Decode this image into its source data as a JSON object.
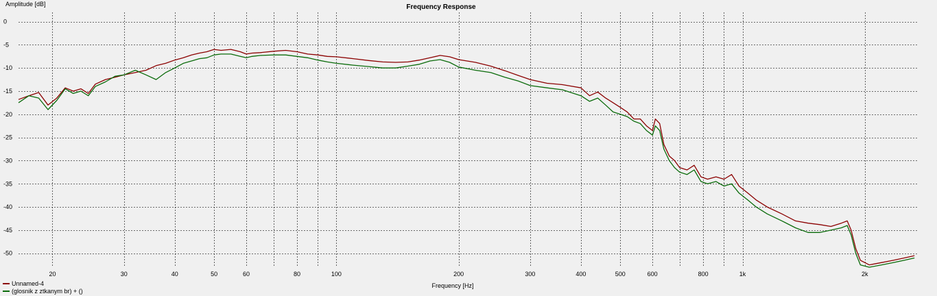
{
  "chart_data": {
    "type": "line",
    "title": "Frequency Response",
    "xlabel": "Frequency [Hz]",
    "ylabel": "Amplitude [dB]",
    "x_scale": "log",
    "xlim": [
      16.5,
      2700
    ],
    "ylim": [
      -53,
      2
    ],
    "grid": true,
    "legend_position": "bottom-left",
    "x_ticks": [
      {
        "value": 20,
        "label": "20"
      },
      {
        "value": 30,
        "label": "30"
      },
      {
        "value": 40,
        "label": "40"
      },
      {
        "value": 50,
        "label": "50"
      },
      {
        "value": 60,
        "label": "60"
      },
      {
        "value": 80,
        "label": "80"
      },
      {
        "value": 100,
        "label": "100"
      },
      {
        "value": 200,
        "label": "200"
      },
      {
        "value": 300,
        "label": "300"
      },
      {
        "value": 400,
        "label": "400"
      },
      {
        "value": 500,
        "label": "500"
      },
      {
        "value": 600,
        "label": "600"
      },
      {
        "value": 800,
        "label": "800"
      },
      {
        "value": 1000,
        "label": "1k"
      },
      {
        "value": 2000,
        "label": "2k"
      }
    ],
    "x_minor_grid": [
      70,
      90,
      700,
      900
    ],
    "y_ticks": [
      {
        "value": 0,
        "label": "0"
      },
      {
        "value": -5,
        "label": "-5"
      },
      {
        "value": -10,
        "label": "-10"
      },
      {
        "value": -15,
        "label": "-15"
      },
      {
        "value": -20,
        "label": "-20"
      },
      {
        "value": -25,
        "label": "-25"
      },
      {
        "value": -30,
        "label": "-30"
      },
      {
        "value": -35,
        "label": "-35"
      },
      {
        "value": -40,
        "label": "-40"
      },
      {
        "value": -45,
        "label": "-45"
      },
      {
        "value": -50,
        "label": "-50"
      }
    ],
    "series": [
      {
        "name": "Unnamed-4",
        "color": "#8b0000",
        "points": [
          [
            16.5,
            -16.8
          ],
          [
            17.5,
            -16.0
          ],
          [
            18.5,
            -15.3
          ],
          [
            19.5,
            -18.0
          ],
          [
            20.5,
            -16.5
          ],
          [
            21.5,
            -14.3
          ],
          [
            22.5,
            -15.0
          ],
          [
            23.5,
            -14.5
          ],
          [
            24.5,
            -15.5
          ],
          [
            25.5,
            -13.5
          ],
          [
            27,
            -12.5
          ],
          [
            28.5,
            -12.0
          ],
          [
            30,
            -11.5
          ],
          [
            32,
            -11.0
          ],
          [
            34,
            -10.5
          ],
          [
            36,
            -9.5
          ],
          [
            38,
            -9.0
          ],
          [
            40,
            -8.3
          ],
          [
            42,
            -7.8
          ],
          [
            44,
            -7.2
          ],
          [
            46,
            -6.8
          ],
          [
            48,
            -6.5
          ],
          [
            50,
            -6.0
          ],
          [
            52,
            -6.2
          ],
          [
            55,
            -6.0
          ],
          [
            58,
            -6.5
          ],
          [
            60,
            -7.0
          ],
          [
            62,
            -6.8
          ],
          [
            65,
            -6.7
          ],
          [
            70,
            -6.4
          ],
          [
            75,
            -6.2
          ],
          [
            80,
            -6.5
          ],
          [
            85,
            -7.0
          ],
          [
            90,
            -7.2
          ],
          [
            95,
            -7.5
          ],
          [
            100,
            -7.6
          ],
          [
            110,
            -8.0
          ],
          [
            120,
            -8.4
          ],
          [
            130,
            -8.7
          ],
          [
            140,
            -8.8
          ],
          [
            150,
            -8.7
          ],
          [
            160,
            -8.3
          ],
          [
            170,
            -7.8
          ],
          [
            180,
            -7.3
          ],
          [
            190,
            -7.6
          ],
          [
            200,
            -8.2
          ],
          [
            220,
            -8.8
          ],
          [
            240,
            -9.6
          ],
          [
            260,
            -10.6
          ],
          [
            280,
            -11.6
          ],
          [
            300,
            -12.5
          ],
          [
            330,
            -13.3
          ],
          [
            360,
            -13.6
          ],
          [
            400,
            -14.3
          ],
          [
            420,
            -16.0
          ],
          [
            440,
            -15.2
          ],
          [
            460,
            -16.5
          ],
          [
            480,
            -17.5
          ],
          [
            500,
            -18.5
          ],
          [
            520,
            -19.5
          ],
          [
            540,
            -21.0
          ],
          [
            560,
            -21.0
          ],
          [
            580,
            -22.5
          ],
          [
            600,
            -23.5
          ],
          [
            610,
            -21.0
          ],
          [
            625,
            -22.0
          ],
          [
            640,
            -26.5
          ],
          [
            660,
            -29.0
          ],
          [
            680,
            -30.0
          ],
          [
            700,
            -31.5
          ],
          [
            730,
            -32.0
          ],
          [
            760,
            -31.0
          ],
          [
            790,
            -33.5
          ],
          [
            820,
            -34.0
          ],
          [
            860,
            -33.5
          ],
          [
            900,
            -34.0
          ],
          [
            940,
            -33.0
          ],
          [
            980,
            -35.5
          ],
          [
            1030,
            -37.0
          ],
          [
            1080,
            -38.5
          ],
          [
            1150,
            -40.0
          ],
          [
            1250,
            -41.5
          ],
          [
            1350,
            -43.0
          ],
          [
            1450,
            -43.5
          ],
          [
            1550,
            -43.8
          ],
          [
            1650,
            -44.2
          ],
          [
            1750,
            -43.5
          ],
          [
            1810,
            -43.0
          ],
          [
            1850,
            -45.0
          ],
          [
            1900,
            -49.0
          ],
          [
            1950,
            -51.5
          ],
          [
            2050,
            -52.5
          ],
          [
            2200,
            -52.0
          ],
          [
            2350,
            -51.5
          ],
          [
            2500,
            -51.0
          ],
          [
            2650,
            -50.5
          ]
        ]
      },
      {
        "name": "(glosnik z ztkanym br) + ()",
        "color": "#0a6b0a",
        "points": [
          [
            16.5,
            -17.5
          ],
          [
            17.5,
            -16.0
          ],
          [
            18.5,
            -16.5
          ],
          [
            19.5,
            -19.0
          ],
          [
            20.5,
            -17.0
          ],
          [
            21.5,
            -14.5
          ],
          [
            22.5,
            -15.5
          ],
          [
            23.5,
            -15.0
          ],
          [
            24.5,
            -16.0
          ],
          [
            25.5,
            -14.0
          ],
          [
            27,
            -13.0
          ],
          [
            28.5,
            -11.8
          ],
          [
            30,
            -11.5
          ],
          [
            32,
            -10.5
          ],
          [
            34,
            -11.5
          ],
          [
            36,
            -12.5
          ],
          [
            38,
            -11.0
          ],
          [
            40,
            -10.0
          ],
          [
            42,
            -9.0
          ],
          [
            44,
            -8.5
          ],
          [
            46,
            -8.0
          ],
          [
            48,
            -7.8
          ],
          [
            50,
            -7.2
          ],
          [
            52,
            -7.0
          ],
          [
            55,
            -7.0
          ],
          [
            58,
            -7.5
          ],
          [
            60,
            -7.8
          ],
          [
            62,
            -7.5
          ],
          [
            65,
            -7.3
          ],
          [
            70,
            -7.2
          ],
          [
            75,
            -7.2
          ],
          [
            80,
            -7.5
          ],
          [
            85,
            -7.8
          ],
          [
            90,
            -8.3
          ],
          [
            95,
            -8.7
          ],
          [
            100,
            -9.0
          ],
          [
            110,
            -9.4
          ],
          [
            120,
            -9.7
          ],
          [
            130,
            -10.0
          ],
          [
            140,
            -10.0
          ],
          [
            150,
            -9.6
          ],
          [
            160,
            -9.2
          ],
          [
            170,
            -8.5
          ],
          [
            180,
            -8.2
          ],
          [
            190,
            -8.8
          ],
          [
            200,
            -9.8
          ],
          [
            220,
            -10.5
          ],
          [
            240,
            -11.0
          ],
          [
            260,
            -12.0
          ],
          [
            280,
            -12.8
          ],
          [
            300,
            -13.8
          ],
          [
            330,
            -14.3
          ],
          [
            360,
            -14.7
          ],
          [
            400,
            -16.0
          ],
          [
            420,
            -17.2
          ],
          [
            440,
            -16.5
          ],
          [
            460,
            -18.0
          ],
          [
            480,
            -19.5
          ],
          [
            500,
            -20.0
          ],
          [
            520,
            -20.5
          ],
          [
            540,
            -21.5
          ],
          [
            560,
            -22.0
          ],
          [
            580,
            -23.5
          ],
          [
            600,
            -24.5
          ],
          [
            610,
            -22.5
          ],
          [
            625,
            -23.5
          ],
          [
            640,
            -27.5
          ],
          [
            660,
            -30.0
          ],
          [
            680,
            -31.5
          ],
          [
            700,
            -32.5
          ],
          [
            730,
            -33.0
          ],
          [
            760,
            -32.0
          ],
          [
            790,
            -34.5
          ],
          [
            820,
            -35.0
          ],
          [
            860,
            -34.5
          ],
          [
            900,
            -35.5
          ],
          [
            940,
            -35.0
          ],
          [
            980,
            -37.0
          ],
          [
            1030,
            -38.5
          ],
          [
            1080,
            -40.0
          ],
          [
            1150,
            -41.5
          ],
          [
            1250,
            -43.0
          ],
          [
            1350,
            -44.5
          ],
          [
            1450,
            -45.5
          ],
          [
            1550,
            -45.5
          ],
          [
            1650,
            -45.0
          ],
          [
            1750,
            -44.5
          ],
          [
            1810,
            -44.0
          ],
          [
            1850,
            -46.0
          ],
          [
            1900,
            -50.0
          ],
          [
            1950,
            -52.5
          ],
          [
            2050,
            -53.0
          ],
          [
            2200,
            -52.5
          ],
          [
            2350,
            -52.0
          ],
          [
            2500,
            -51.5
          ],
          [
            2650,
            -51.0
          ]
        ]
      }
    ]
  }
}
